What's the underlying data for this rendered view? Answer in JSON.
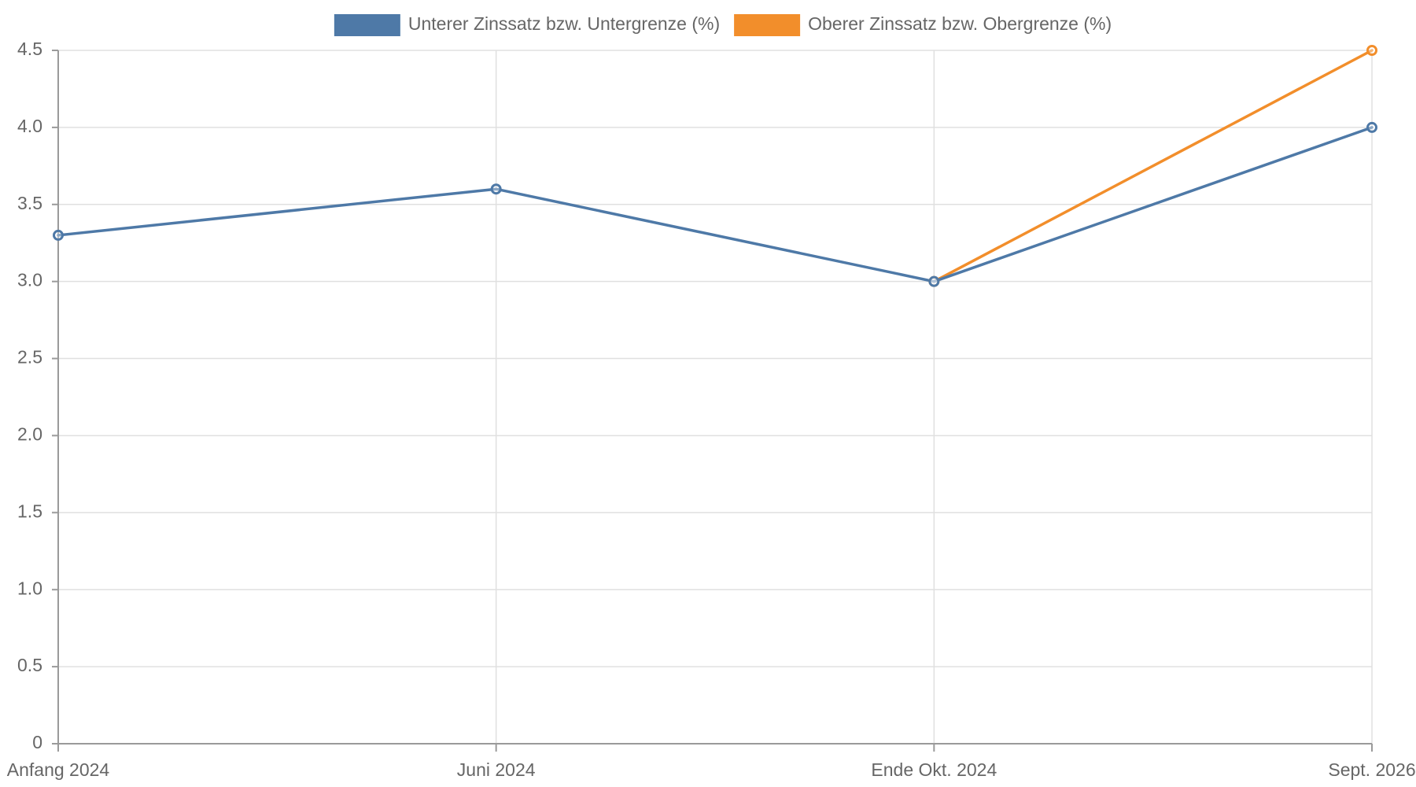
{
  "chart_data": {
    "type": "line",
    "categories": [
      "Anfang 2024",
      "Juni 2024",
      "Ende Okt. 2024",
      "Sept. 2026"
    ],
    "series": [
      {
        "name": "Unterer Zinssatz bzw. Untergrenze (%)",
        "color": "#4e79a7",
        "values": [
          3.3,
          3.6,
          3.0,
          4.0
        ]
      },
      {
        "name": "Oberer Zinssatz bzw. Obergrenze (%)",
        "color": "#f28e2b",
        "values": [
          null,
          null,
          3.0,
          4.5
        ]
      }
    ],
    "ylim": [
      0,
      4.5
    ],
    "yticks": [
      0,
      0.5,
      1.0,
      1.5,
      2.0,
      2.5,
      3.0,
      3.5,
      4.0,
      4.5
    ],
    "ytick_labels": [
      "0",
      "0.5",
      "1.0",
      "1.5",
      "2.0",
      "2.5",
      "3.0",
      "3.5",
      "4.0",
      "4.5"
    ],
    "grid": true,
    "legend_position": "top-center",
    "title": "",
    "xlabel": "",
    "ylabel": ""
  }
}
